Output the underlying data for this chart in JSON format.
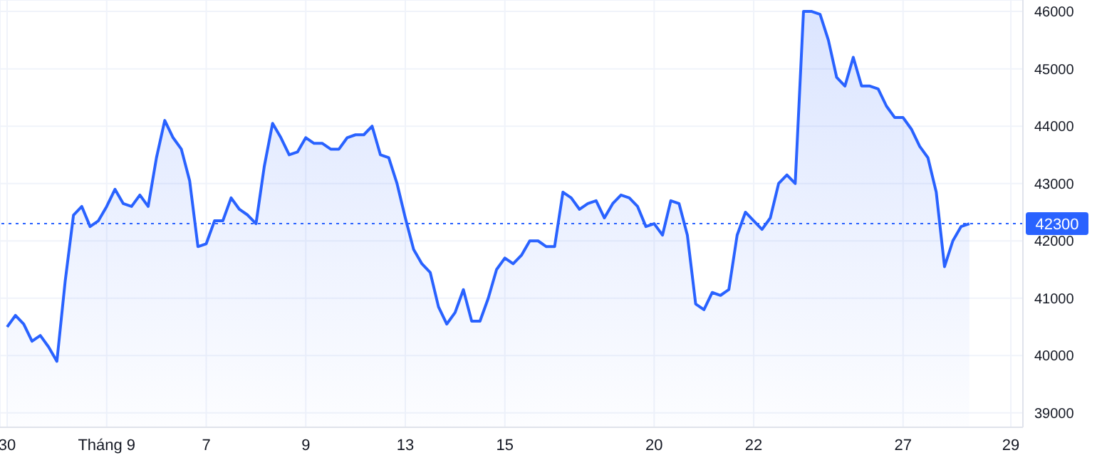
{
  "chart_data": {
    "type": "area",
    "categories": [
      "30",
      null,
      null,
      null,
      null,
      null,
      null,
      null,
      null,
      null,
      null,
      null,
      "Tháng 9",
      null,
      null,
      null,
      null,
      null,
      null,
      null,
      null,
      null,
      null,
      null,
      "7",
      null,
      null,
      null,
      null,
      null,
      null,
      null,
      null,
      null,
      null,
      null,
      "9",
      null,
      null,
      null,
      null,
      null,
      null,
      null,
      null,
      null,
      null,
      null,
      "13",
      null,
      null,
      null,
      null,
      null,
      null,
      null,
      null,
      null,
      null,
      null,
      "15",
      null,
      null,
      null,
      null,
      null,
      null,
      null,
      null,
      null,
      null,
      null,
      null,
      null,
      null,
      null,
      null,
      null,
      "20",
      null,
      null,
      null,
      null,
      null,
      null,
      null,
      null,
      null,
      null,
      null,
      "22",
      null,
      null,
      null,
      null,
      null,
      null,
      null,
      null,
      null,
      null,
      null,
      null,
      null,
      null,
      null,
      null,
      null,
      "27",
      null,
      null,
      null,
      null,
      null,
      null,
      null,
      null,
      null,
      null,
      null,
      null,
      "29"
    ],
    "series": [
      {
        "color": "#2962ff",
        "values": [
          40500,
          40700,
          40550,
          40250,
          40350,
          40150,
          39900,
          41300,
          42450,
          42600,
          42250,
          42350,
          42600,
          42900,
          42650,
          42600,
          42800,
          42600,
          43450,
          44100,
          43800,
          43600,
          43050,
          41900,
          41950,
          42350,
          42350,
          42750,
          42550,
          42450,
          42300,
          43300,
          44050,
          43800,
          43500,
          43550,
          43800,
          43700,
          43700,
          43600,
          43600,
          43800,
          43850,
          43850,
          44000,
          43500,
          43450,
          43000,
          42400,
          41850,
          41600,
          41450,
          40850,
          40550,
          40750,
          41150,
          40600,
          40600,
          41000,
          41500,
          41700,
          41600,
          41750,
          42000,
          42000,
          41900,
          41900,
          42850,
          42750,
          42550,
          42650,
          42700,
          42400,
          42650,
          42800,
          42750,
          42600,
          42250,
          42300,
          42100,
          42700,
          42650,
          42100,
          40900,
          40800,
          41100,
          41050,
          41150,
          42100,
          42500,
          42350,
          42200,
          42400,
          43000,
          43150,
          43000,
          46000,
          46000,
          45950,
          45500,
          44850,
          44700,
          45200,
          44700,
          44700,
          44650,
          44350,
          44150,
          44150,
          43950,
          43650,
          43450,
          42850,
          41550,
          42000,
          42250,
          42300,
          null,
          null,
          null,
          null,
          null
        ]
      }
    ],
    "ylim": [
      38750,
      46200
    ],
    "yticks": [
      39000,
      40000,
      41000,
      42000,
      43000,
      44000,
      45000,
      46000
    ],
    "ref_lines": [
      {
        "axis": "y",
        "value": 42300,
        "label": "42300",
        "color": "#2962ff",
        "line_style": "dotted"
      }
    ],
    "grid": true,
    "legend": false
  }
}
